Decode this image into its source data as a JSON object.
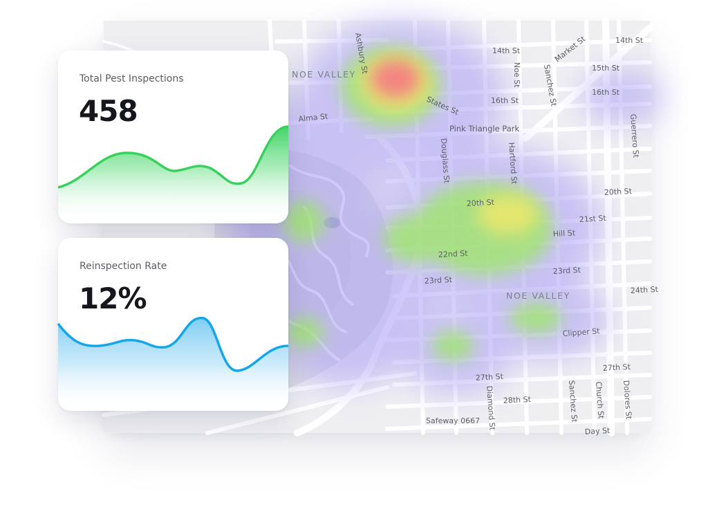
{
  "cards": [
    {
      "title": "Total Pest Inspections",
      "value": "458",
      "color": "#38d15e"
    },
    {
      "title": "Reinspection Rate",
      "value": "12%",
      "color": "#14a5ea"
    }
  ],
  "map": {
    "neighborhoods": [
      "NOE VALLEY",
      "NOE VALLEY"
    ],
    "parks": [
      "Pink Triangle Park"
    ],
    "places": [
      "Safeway 0667"
    ],
    "streets": {
      "ashbury": "Ashbury St",
      "fourteenth": "14th St",
      "fourteenth_b": "14th St",
      "fifteenth": "15th St",
      "sixteenth": "16th St",
      "sixteenth_b": "16th St",
      "market": "Market St",
      "noe": "Noe St",
      "sanchez": "Sanchez St",
      "alma": "Alma St",
      "states": "States St",
      "guerrero": "Guerrero St",
      "douglass": "Douglass St",
      "hartford": "Hartford St",
      "twentieth": "20th St",
      "twentieth_b": "20th St",
      "twentyfirst": "21st St",
      "hill": "Hill St",
      "twentysecond": "22nd St",
      "twentythird": "23rd St",
      "twentythird_b": "23rd St",
      "twentyfourth": "24th St",
      "clipper": "Clipper St",
      "twentyseventh": "27th St",
      "twentyseventh_b": "27th St",
      "twentyeighth": "28th St",
      "diamond": "Diamond St",
      "sanchez_b": "Sanchez St",
      "church": "Church St",
      "dolores": "Dolores St",
      "day": "Day St"
    }
  },
  "heat_colors": {
    "low": "#a99cf4",
    "mid": "#9fe66a",
    "high": "#f2e86a",
    "peak": "#f47a84"
  }
}
